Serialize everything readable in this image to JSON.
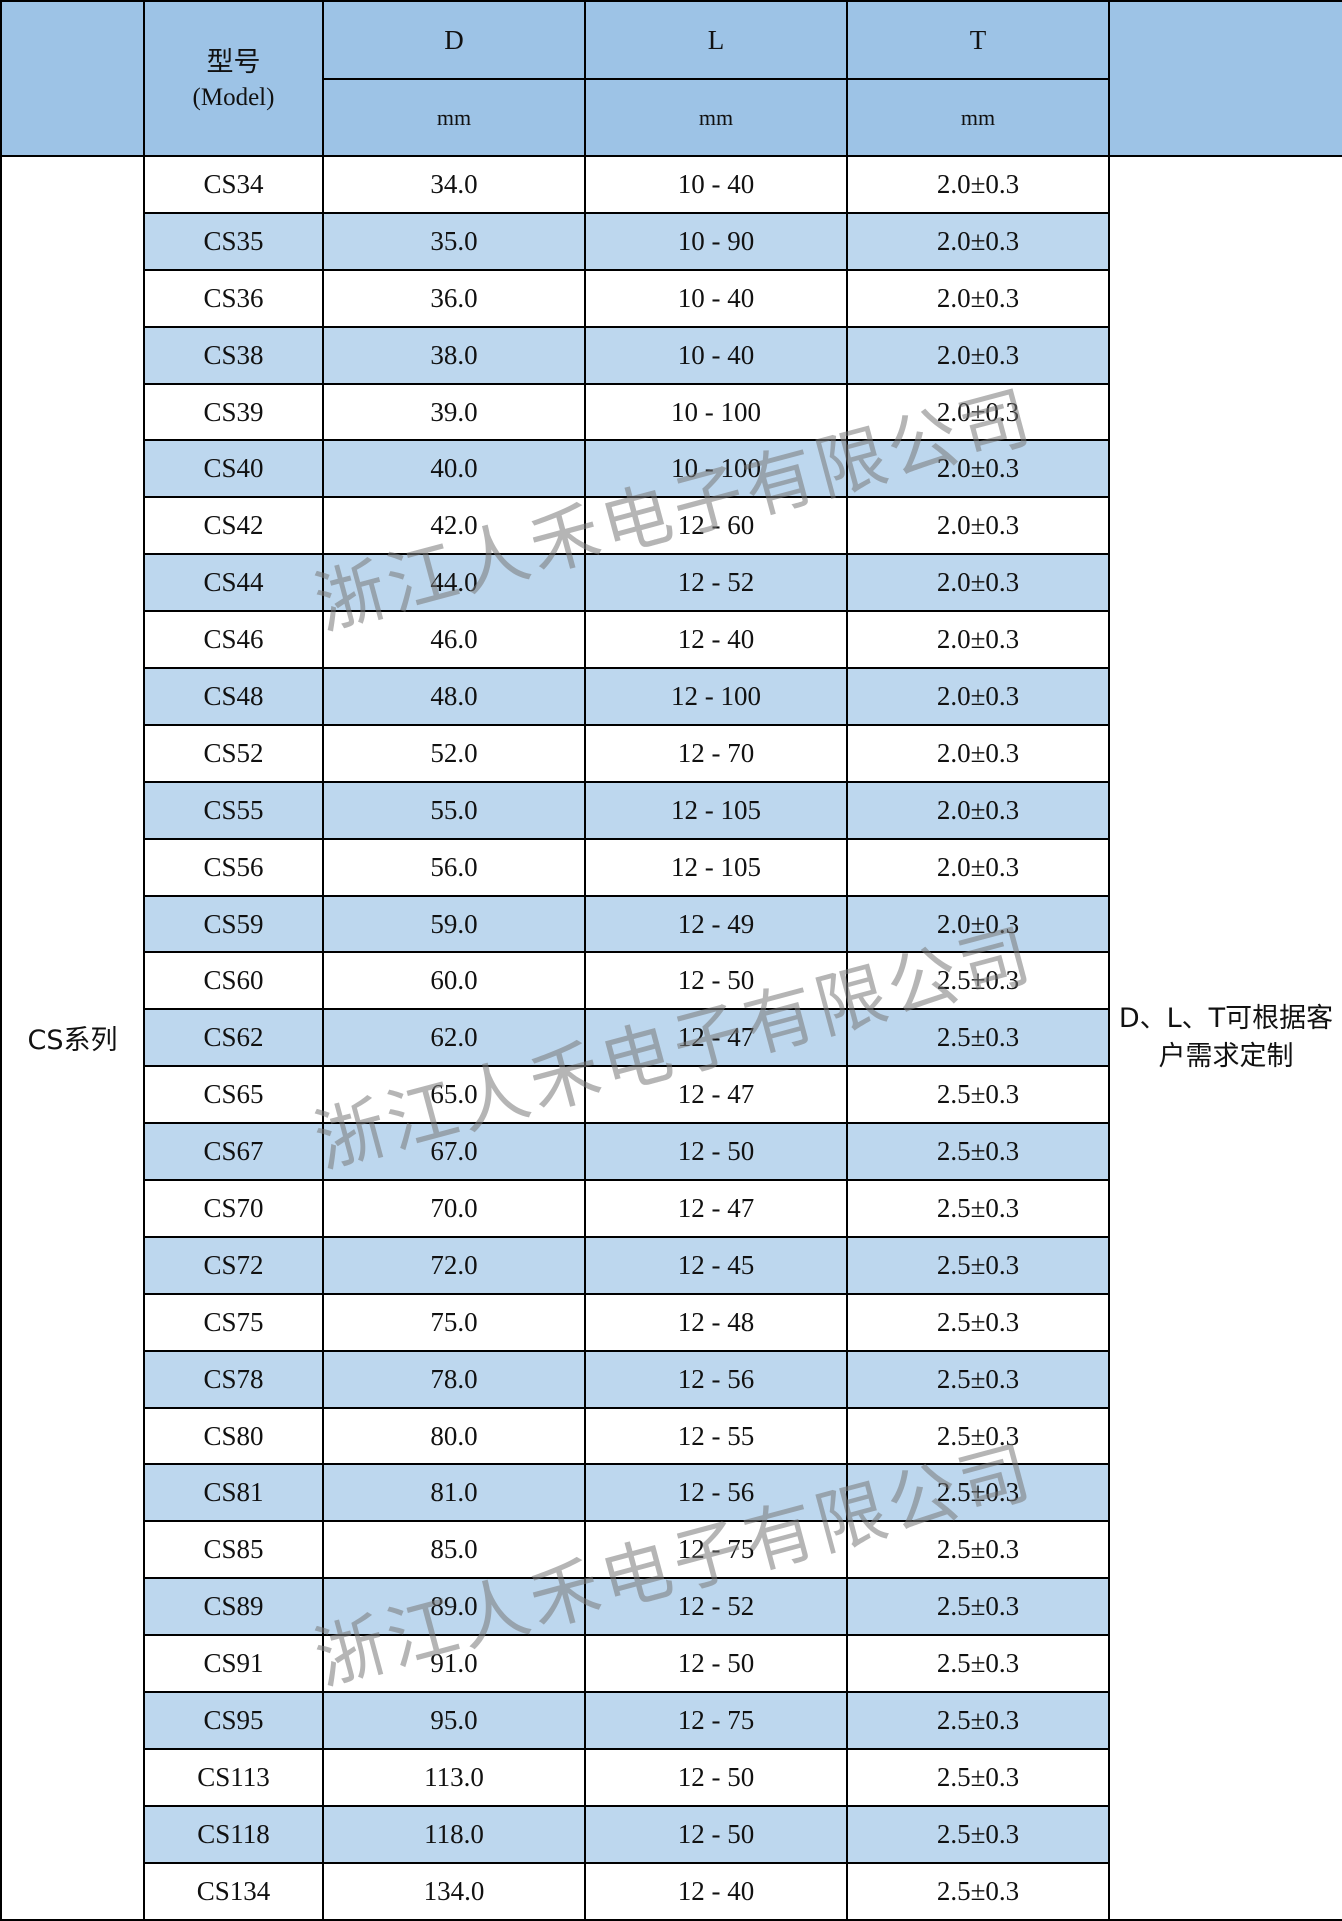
{
  "header": {
    "model": "型号",
    "model_en": "(Model)",
    "columns": [
      {
        "name": "D",
        "unit": "mm"
      },
      {
        "name": "L",
        "unit": "mm"
      },
      {
        "name": "T",
        "unit": "mm"
      }
    ]
  },
  "series": "CS系列",
  "note": "D、L、T可根据客户需求定制",
  "watermark": "浙江人禾电子有限公司",
  "rows": [
    [
      "CS34",
      "34.0",
      "10 - 40",
      "2.0±0.3"
    ],
    [
      "CS35",
      "35.0",
      "10 - 90",
      "2.0±0.3"
    ],
    [
      "CS36",
      "36.0",
      "10 - 40",
      "2.0±0.3"
    ],
    [
      "CS38",
      "38.0",
      "10 - 40",
      "2.0±0.3"
    ],
    [
      "CS39",
      "39.0",
      "10 - 100",
      "2.0±0.3"
    ],
    [
      "CS40",
      "40.0",
      "10 - 100",
      "2.0±0.3"
    ],
    [
      "CS42",
      "42.0",
      "12 - 60",
      "2.0±0.3"
    ],
    [
      "CS44",
      "44.0",
      "12 - 52",
      "2.0±0.3"
    ],
    [
      "CS46",
      "46.0",
      "12 - 40",
      "2.0±0.3"
    ],
    [
      "CS48",
      "48.0",
      "12 - 100",
      "2.0±0.3"
    ],
    [
      "CS52",
      "52.0",
      "12 - 70",
      "2.0±0.3"
    ],
    [
      "CS55",
      "55.0",
      "12 - 105",
      "2.0±0.3"
    ],
    [
      "CS56",
      "56.0",
      "12 - 105",
      "2.0±0.3"
    ],
    [
      "CS59",
      "59.0",
      "12 - 49",
      "2.0±0.3"
    ],
    [
      "CS60",
      "60.0",
      "12 - 50",
      "2.5±0.3"
    ],
    [
      "CS62",
      "62.0",
      "12 - 47",
      "2.5±0.3"
    ],
    [
      "CS65",
      "65.0",
      "12 - 47",
      "2.5±0.3"
    ],
    [
      "CS67",
      "67.0",
      "12 - 50",
      "2.5±0.3"
    ],
    [
      "CS70",
      "70.0",
      "12 - 47",
      "2.5±0.3"
    ],
    [
      "CS72",
      "72.0",
      "12 - 45",
      "2.5±0.3"
    ],
    [
      "CS75",
      "75.0",
      "12 - 48",
      "2.5±0.3"
    ],
    [
      "CS78",
      "78.0",
      "12 - 56",
      "2.5±0.3"
    ],
    [
      "CS80",
      "80.0",
      "12 - 55",
      "2.5±0.3"
    ],
    [
      "CS81",
      "81.0",
      "12 - 56",
      "2.5±0.3"
    ],
    [
      "CS85",
      "85.0",
      "12 - 75",
      "2.5±0.3"
    ],
    [
      "CS89",
      "89.0",
      "12 - 52",
      "2.5±0.3"
    ],
    [
      "CS91",
      "91.0",
      "12 - 50",
      "2.5±0.3"
    ],
    [
      "CS95",
      "95.0",
      "12 - 75",
      "2.5±0.3"
    ],
    [
      "CS113",
      "113.0",
      "12 - 50",
      "2.5±0.3"
    ],
    [
      "CS118",
      "118.0",
      "12 - 50",
      "2.5±0.3"
    ],
    [
      "CS134",
      "134.0",
      "12 - 40",
      "2.5±0.3"
    ]
  ]
}
